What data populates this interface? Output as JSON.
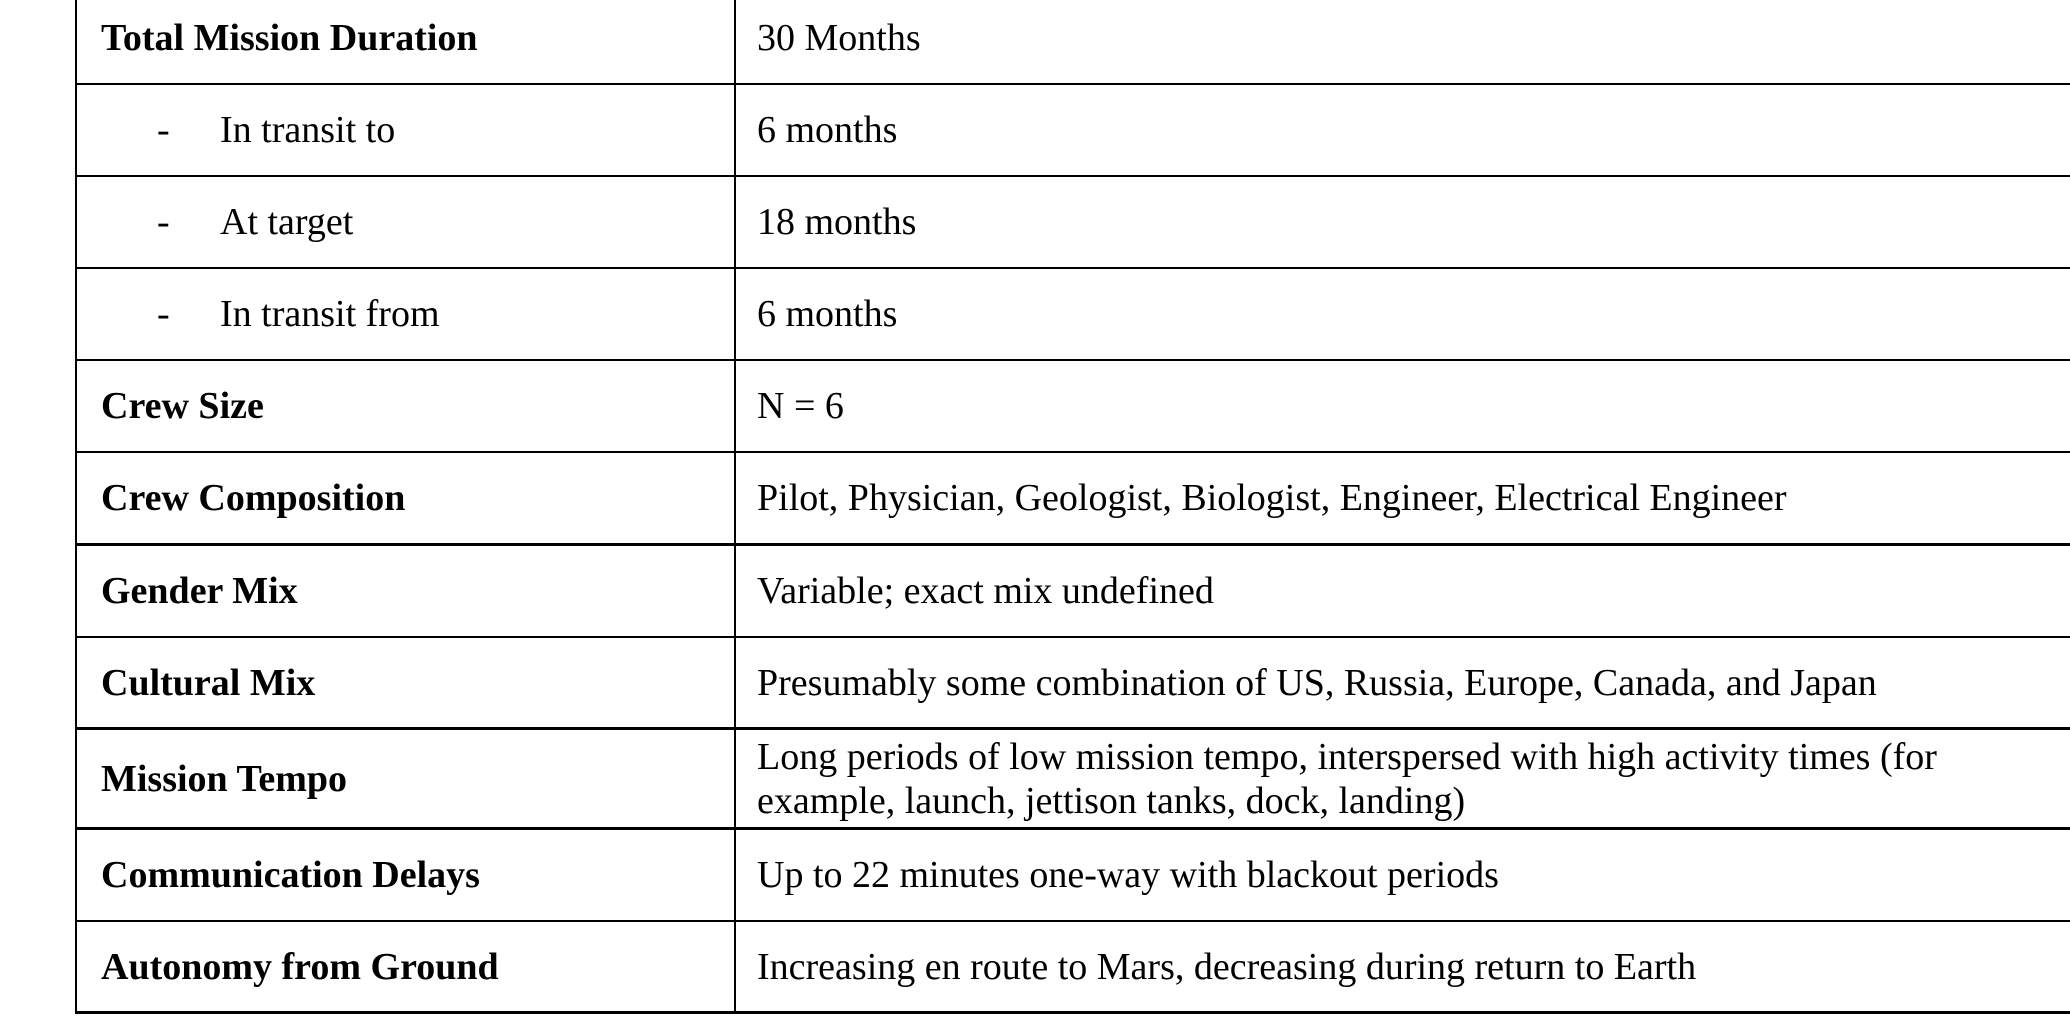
{
  "rows": [
    {
      "label": "Total Mission Duration",
      "value": "30 Months",
      "sub": false
    },
    {
      "label": "In transit to",
      "value": "6 months",
      "sub": true
    },
    {
      "label": "At target",
      "value": "18 months",
      "sub": true
    },
    {
      "label": "In transit from",
      "value": "6 months",
      "sub": true
    },
    {
      "label": "Crew Size",
      "value": "N = 6",
      "sub": false
    },
    {
      "label": "Crew Composition",
      "value": "Pilot, Physician, Geologist, Biologist, Engineer, Electrical Engineer",
      "sub": false
    },
    {
      "label": "Gender Mix",
      "value": "Variable; exact mix undefined",
      "sub": false
    },
    {
      "label": "Cultural Mix",
      "value": "Presumably some combination of US, Russia, Europe, Canada, and Japan",
      "sub": false
    },
    {
      "label": "Mission Tempo",
      "value": "Long periods of low mission tempo, interspersed with high activity times (for example, launch, jettison tanks, dock, landing)",
      "sub": false
    },
    {
      "label": "Communication Delays",
      "value": "Up to 22 minutes one-way with blackout periods",
      "sub": false
    },
    {
      "label": "Autonomy from Ground",
      "value": "Increasing en route to Mars, decreasing during return to Earth",
      "sub": false
    }
  ],
  "dash": "-"
}
